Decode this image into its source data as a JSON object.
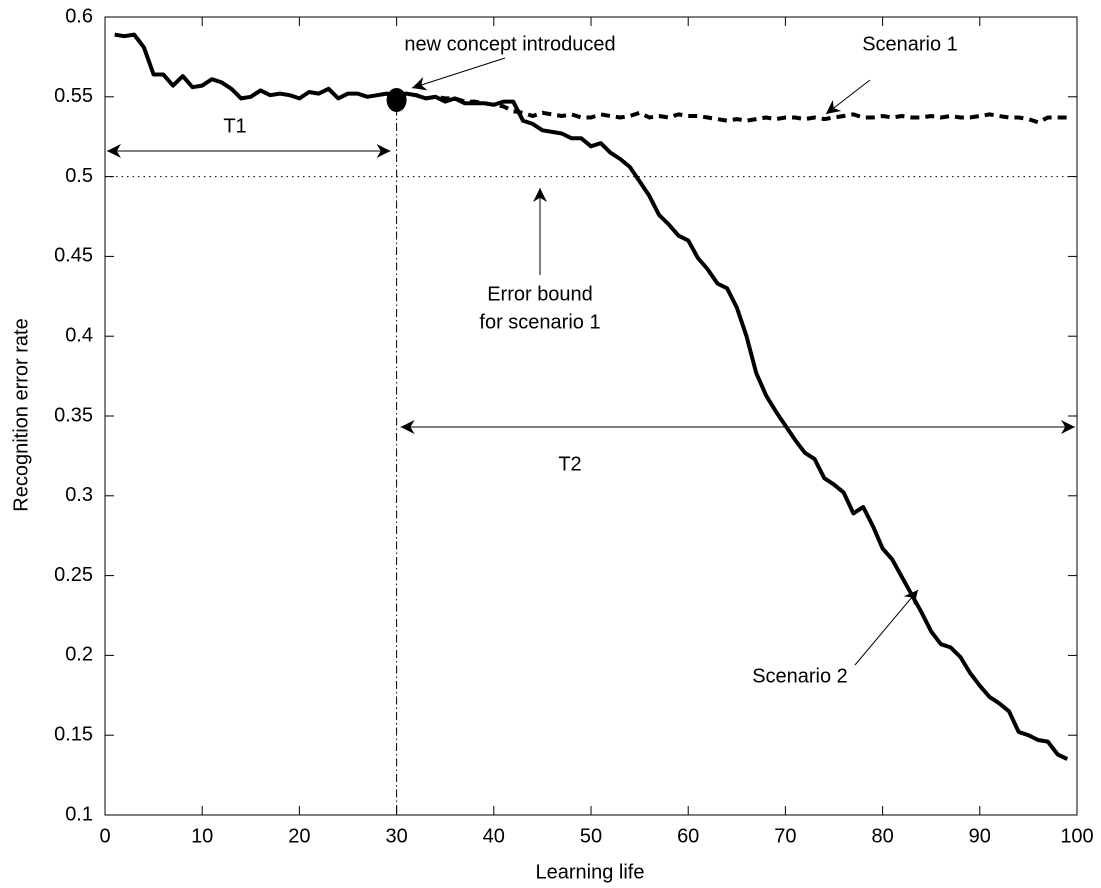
{
  "chart_data": {
    "type": "line",
    "xlabel": "Learning life",
    "ylabel": "Recognition error rate",
    "x": [
      1,
      2,
      3,
      4,
      5,
      6,
      7,
      8,
      9,
      10,
      11,
      12,
      13,
      14,
      15,
      16,
      17,
      18,
      19,
      20,
      21,
      22,
      23,
      24,
      25,
      26,
      27,
      28,
      29,
      30,
      31,
      32,
      33,
      34,
      35,
      36,
      37,
      38,
      39,
      40,
      41,
      42,
      43,
      44,
      45,
      46,
      47,
      48,
      49,
      50,
      51,
      52,
      53,
      54,
      55,
      56,
      57,
      58,
      59,
      60,
      61,
      62,
      63,
      64,
      65,
      66,
      67,
      68,
      69,
      70,
      71,
      72,
      73,
      74,
      75,
      76,
      77,
      78,
      79,
      80,
      81,
      82,
      83,
      84,
      85,
      86,
      87,
      88,
      89,
      90,
      91,
      92,
      93,
      94,
      95,
      96,
      97,
      98,
      99
    ],
    "series": [
      {
        "name": "Scenario 1",
        "color": "#000000",
        "dash": true,
        "values": [
          null,
          null,
          null,
          null,
          null,
          null,
          null,
          null,
          null,
          null,
          null,
          null,
          null,
          null,
          null,
          null,
          null,
          null,
          null,
          null,
          null,
          null,
          null,
          null,
          null,
          null,
          null,
          null,
          null,
          0.551,
          0.552,
          0.551,
          0.549,
          0.55,
          0.549,
          0.549,
          0.547,
          0.547,
          0.546,
          0.545,
          0.544,
          0.541,
          0.54,
          0.538,
          0.54,
          0.539,
          0.538,
          0.539,
          0.537,
          0.537,
          0.539,
          0.538,
          0.537,
          0.538,
          0.54,
          0.537,
          0.538,
          0.537,
          0.539,
          0.538,
          0.538,
          0.537,
          0.536,
          0.535,
          0.536,
          0.535,
          0.536,
          0.537,
          0.536,
          0.537,
          0.537,
          0.536,
          0.537,
          0.536,
          0.537,
          0.538,
          0.539,
          0.537,
          0.537,
          0.538,
          0.537,
          0.538,
          0.537,
          0.537,
          0.538,
          0.537,
          0.538,
          0.537,
          0.537,
          0.538,
          0.539,
          0.538,
          0.537,
          0.537,
          0.536,
          0.534,
          0.537,
          0.537,
          0.537
        ]
      },
      {
        "name": "Scenario 2",
        "color": "#000000",
        "dash": false,
        "values": [
          0.589,
          0.588,
          0.589,
          0.581,
          0.564,
          0.564,
          0.557,
          0.563,
          0.556,
          0.557,
          0.561,
          0.559,
          0.555,
          0.549,
          0.55,
          0.554,
          0.551,
          0.552,
          0.551,
          0.549,
          0.553,
          0.552,
          0.555,
          0.549,
          0.552,
          0.552,
          0.55,
          0.551,
          0.552,
          0.551,
          0.552,
          0.551,
          0.549,
          0.55,
          0.547,
          0.549,
          0.546,
          0.546,
          0.546,
          0.545,
          0.547,
          0.547,
          0.535,
          0.533,
          0.529,
          0.528,
          0.527,
          0.524,
          0.524,
          0.519,
          0.521,
          0.515,
          0.511,
          0.506,
          0.497,
          0.488,
          0.476,
          0.47,
          0.463,
          0.46,
          0.449,
          0.442,
          0.433,
          0.43,
          0.418,
          0.4,
          0.377,
          0.363,
          0.353,
          0.344,
          0.335,
          0.327,
          0.323,
          0.311,
          0.307,
          0.302,
          0.289,
          0.293,
          0.281,
          0.267,
          0.26,
          0.249,
          0.238,
          0.227,
          0.215,
          0.207,
          0.205,
          0.199,
          0.189,
          0.181,
          0.174,
          0.17,
          0.165,
          0.152,
          0.15,
          0.147,
          0.146,
          0.138,
          0.135
        ]
      }
    ],
    "marker": {
      "x": 30,
      "y": 0.548
    },
    "error_bound": 0.5,
    "concept_x": 30,
    "annotations": [
      "new concept introduced",
      "Scenario 1",
      "Scenario 2",
      [
        "Error bound",
        "for scenario 1"
      ],
      "T1",
      "T2"
    ],
    "xlim": [
      0,
      100
    ],
    "xticks": [
      0,
      10,
      20,
      30,
      40,
      50,
      60,
      70,
      80,
      90,
      100
    ],
    "ylim": [
      0.1,
      0.6
    ],
    "yticks": [
      0.1,
      0.15,
      0.2,
      0.25,
      0.3,
      0.35,
      0.4,
      0.45,
      0.5,
      0.55,
      0.6
    ],
    "grid": false
  }
}
